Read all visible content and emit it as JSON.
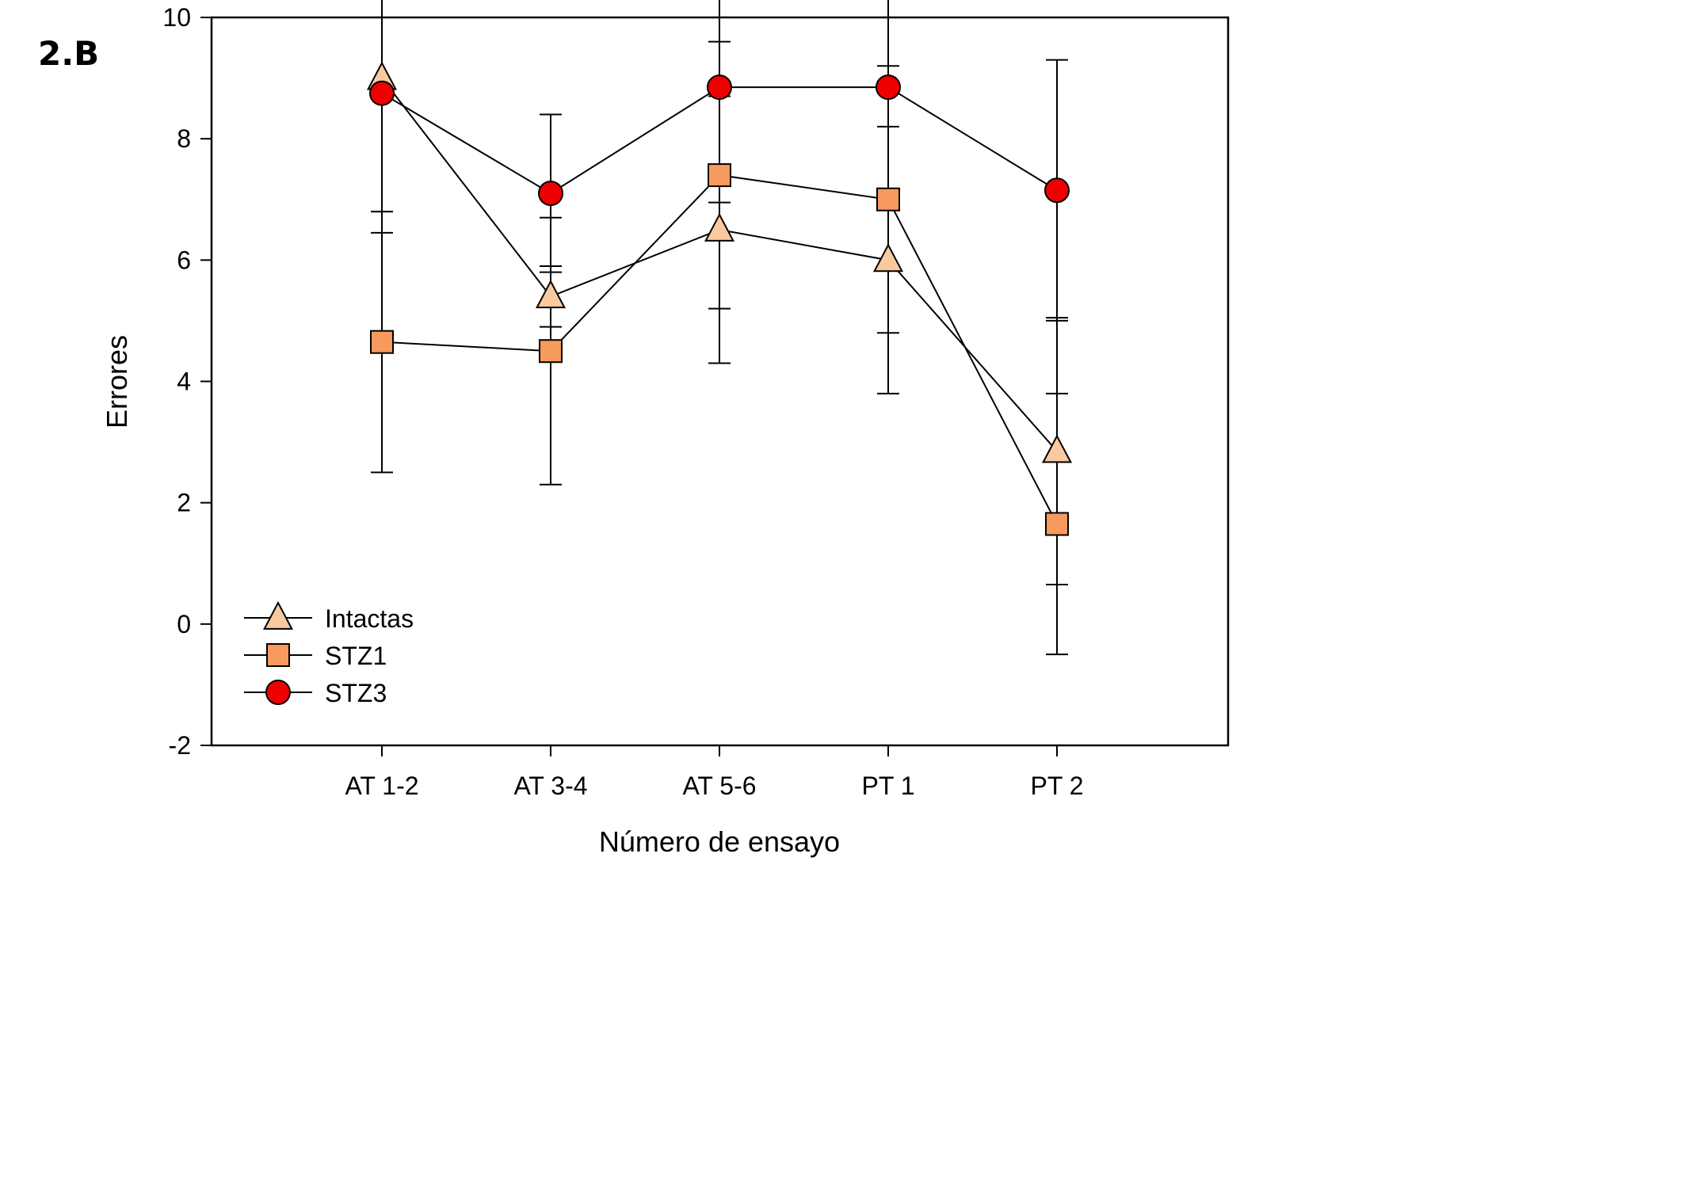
{
  "panel_label": "2.B",
  "colors": {
    "intactas": "#f9c9a0",
    "stz1": "#f79a5d",
    "stz3": "#ee0000",
    "line": "#000000"
  },
  "chart_data": {
    "type": "line",
    "title": "",
    "xlabel": "Número de ensayo",
    "ylabel": "Errores",
    "categories": [
      "AT 1-2",
      "AT 3-4",
      "AT 5-6",
      "PT 1",
      "PT 2"
    ],
    "ylim": [
      -2,
      10
    ],
    "yticks": [
      "-2",
      "0",
      "2",
      "4",
      "6",
      "8",
      "10"
    ],
    "legend_position": "bottom-left",
    "grid": false,
    "series": [
      {
        "name": "Intactas",
        "marker": "triangle",
        "color_key": "intactas",
        "values": [
          9.0,
          5.4,
          6.5,
          6.0,
          2.85
        ],
        "err_low": [
          2.2,
          0.5,
          2.2,
          2.2,
          2.2
        ],
        "err_high": [
          2.2,
          0.5,
          2.2,
          2.2,
          2.2
        ]
      },
      {
        "name": "STZ1",
        "marker": "square",
        "color_key": "stz1",
        "values": [
          4.65,
          4.5,
          7.4,
          7.0,
          1.65
        ],
        "err_low": [
          2.15,
          2.2,
          2.2,
          2.2,
          2.15
        ],
        "err_high": [
          2.15,
          2.2,
          2.2,
          2.2,
          2.15
        ]
      },
      {
        "name": "STZ3",
        "marker": "circle",
        "color_key": "stz3",
        "values": [
          8.75,
          7.1,
          8.85,
          8.85,
          7.15
        ],
        "err_low": [
          2.3,
          1.3,
          1.9,
          1.9,
          2.15
        ],
        "err_high": [
          2.3,
          1.3,
          1.9,
          1.9,
          2.15
        ]
      }
    ]
  }
}
